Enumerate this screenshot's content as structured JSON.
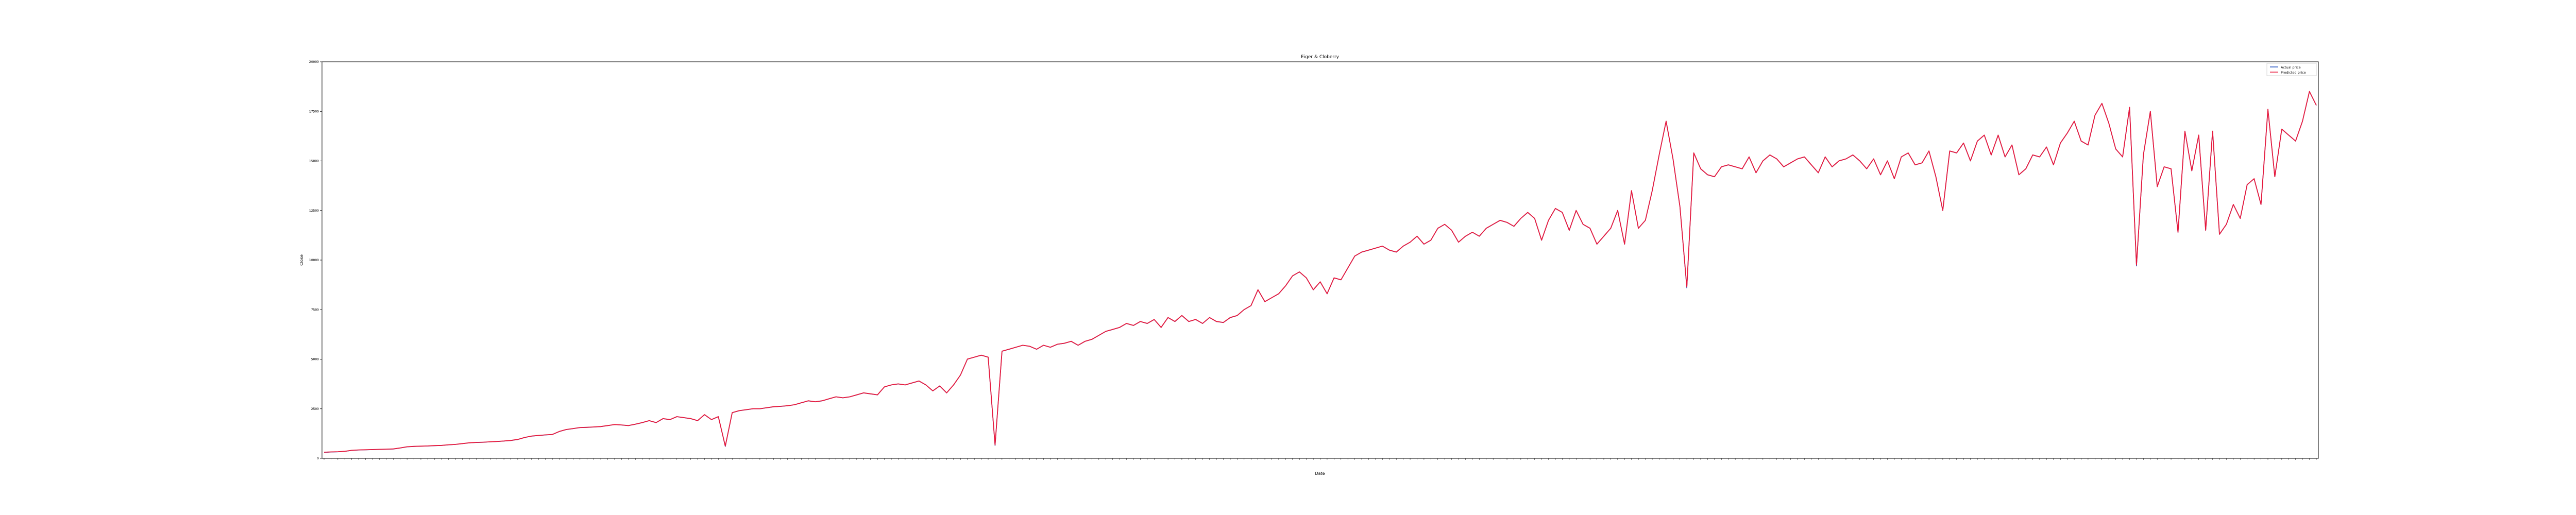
{
  "chart_data": {
    "type": "line",
    "title": "Eiger & Cloberry",
    "xlabel": "Date",
    "ylabel": "Close",
    "ylim": [
      0,
      20000
    ],
    "yticks": [
      0,
      2500,
      5000,
      7500,
      10000,
      12500,
      15000,
      17500,
      20000
    ],
    "ytick_labels": [
      "0",
      "2500",
      "5000",
      "7500",
      "10000",
      "12500",
      "15000",
      "17500",
      "20000"
    ],
    "grid": false,
    "legend_position": "top-right",
    "colors": {
      "series_0": "#1f4fbf",
      "series_1": "#e8193c"
    },
    "series": [
      {
        "name": "Actual price",
        "values": [
          300,
          320,
          330,
          350,
          400,
          420,
          430,
          440,
          450,
          460,
          470,
          520,
          580,
          600,
          610,
          620,
          640,
          650,
          680,
          700,
          740,
          780,
          800,
          810,
          830,
          850,
          870,
          900,
          950,
          1050,
          1120,
          1150,
          1180,
          1200,
          1350,
          1450,
          1500,
          1550,
          1560,
          1580,
          1600,
          1650,
          1700,
          1680,
          1650,
          1720,
          1800,
          1900,
          1800,
          2000,
          1950,
          2100,
          2050,
          2000,
          1900,
          2200,
          1950,
          2100,
          600,
          2300,
          2400,
          2450,
          2500,
          2500,
          2550,
          2600,
          2620,
          2650,
          2700,
          2800,
          2900,
          2850,
          2900,
          3000,
          3100,
          3050,
          3100,
          3200,
          3300,
          3250,
          3200,
          3600,
          3700,
          3750,
          3700,
          3800,
          3900,
          3700,
          3400,
          3650,
          3300,
          3700,
          4200,
          5000,
          5100,
          5200,
          5100,
          650,
          5400,
          5500,
          5600,
          5700,
          5650,
          5500,
          5700,
          5600,
          5750,
          5800,
          5900,
          5700,
          5900,
          6000,
          6200,
          6400,
          6500,
          6600,
          6800,
          6700,
          6900,
          6800,
          7000,
          6600,
          7100,
          6900,
          7200,
          6900,
          7000,
          6800,
          7100,
          6900,
          6850,
          7100,
          7200,
          7500,
          7700,
          8500,
          7900,
          8100,
          8300,
          8700,
          9200,
          9400,
          9100,
          8500,
          8900,
          8300,
          9100,
          9000,
          9600,
          10200,
          10400,
          10500,
          10600,
          10700,
          10500,
          10400,
          10700,
          10900,
          11200,
          10800,
          11000,
          11600,
          11800,
          11500,
          10900,
          11200,
          11400,
          11200,
          11600,
          11800,
          12000,
          11900,
          11700,
          12100,
          12400,
          12100,
          11000,
          12000,
          12600,
          12400,
          11500,
          12500,
          11800,
          11600,
          10800,
          11200,
          11600,
          12500,
          10800,
          13500,
          11600,
          12000,
          13500,
          15300,
          17000,
          15100,
          12700,
          8600,
          15400,
          14600,
          14300,
          14200,
          14700,
          14800,
          14700,
          14600,
          15200,
          14400,
          15000,
          15300,
          15100,
          14700,
          14900,
          15100,
          15200,
          14800,
          14400,
          15200,
          14700,
          15000,
          15100,
          15300,
          15000,
          14600,
          15100,
          14300,
          15000,
          14100,
          15200,
          15400,
          14800,
          14900,
          15500,
          14200,
          12500,
          15500,
          15400,
          15900,
          15000,
          16000,
          16300,
          15300,
          16300,
          15200,
          15800,
          14300,
          14600,
          15300,
          15200,
          15700,
          14800,
          15900,
          16400,
          17000,
          16000,
          15800,
          17300,
          17900,
          16900,
          15600,
          15200,
          17700,
          9700,
          15300,
          17500,
          13700,
          14700,
          14600,
          11400,
          16500,
          14500,
          16300,
          11500,
          16500,
          11300,
          11800,
          12800,
          12100,
          13800,
          14100,
          12800,
          17600,
          14200,
          16600,
          16300,
          16000,
          17000,
          18500,
          17800
        ]
      },
      {
        "name": "Predicted price",
        "values": [
          310,
          325,
          335,
          355,
          405,
          425,
          435,
          445,
          455,
          465,
          475,
          525,
          585,
          605,
          615,
          625,
          645,
          655,
          685,
          705,
          745,
          785,
          805,
          815,
          835,
          855,
          875,
          905,
          955,
          1055,
          1125,
          1155,
          1185,
          1205,
          1355,
          1455,
          1505,
          1555,
          1565,
          1585,
          1605,
          1655,
          1705,
          1685,
          1655,
          1725,
          1805,
          1905,
          1805,
          2005,
          1955,
          2105,
          2055,
          2005,
          1905,
          2205,
          1955,
          2105,
          620,
          2305,
          2405,
          2455,
          2505,
          2505,
          2555,
          2605,
          2625,
          2655,
          2705,
          2805,
          2905,
          2855,
          2905,
          3005,
          3105,
          3055,
          3105,
          3205,
          3305,
          3255,
          3205,
          3605,
          3705,
          3755,
          3705,
          3805,
          3905,
          3705,
          3405,
          3655,
          3305,
          3705,
          4205,
          5005,
          5105,
          5205,
          5105,
          680,
          5405,
          5505,
          5605,
          5705,
          5655,
          5505,
          5705,
          5605,
          5755,
          5805,
          5905,
          5705,
          5905,
          6005,
          6205,
          6405,
          6505,
          6605,
          6805,
          6705,
          6905,
          6805,
          7005,
          6605,
          7105,
          6905,
          7205,
          6905,
          7005,
          6805,
          7105,
          6905,
          6855,
          7105,
          7205,
          7505,
          7705,
          8505,
          7905,
          8105,
          8305,
          8705,
          9205,
          9405,
          9105,
          8505,
          8905,
          8305,
          9105,
          9005,
          9605,
          10205,
          10405,
          10505,
          10605,
          10705,
          10505,
          10405,
          10705,
          10905,
          11205,
          10805,
          11005,
          11605,
          11805,
          11505,
          10905,
          11205,
          11405,
          11205,
          11605,
          11805,
          12005,
          11905,
          11705,
          12105,
          12405,
          12105,
          11005,
          12005,
          12605,
          12405,
          11505,
          12505,
          11805,
          11605,
          10805,
          11205,
          11605,
          12505,
          10805,
          13505,
          11605,
          12005,
          13505,
          15305,
          17005,
          15105,
          12705,
          8650,
          15405,
          14605,
          14305,
          14205,
          14705,
          14805,
          14705,
          14605,
          15205,
          14405,
          15005,
          15305,
          15105,
          14705,
          14905,
          15105,
          15205,
          14805,
          14405,
          15205,
          14705,
          15005,
          15105,
          15305,
          15005,
          14605,
          15105,
          14305,
          15005,
          14105,
          15205,
          15405,
          14805,
          14905,
          15505,
          14205,
          12505,
          15505,
          15405,
          15905,
          15005,
          16005,
          16305,
          15305,
          16305,
          15205,
          15805,
          14305,
          14605,
          15305,
          15205,
          15705,
          14805,
          15905,
          16405,
          17005,
          16005,
          15805,
          17305,
          17905,
          16905,
          15605,
          15205,
          17705,
          9750,
          15305,
          17505,
          13705,
          14705,
          14605,
          11405,
          16505,
          14505,
          16305,
          11505,
          16505,
          11305,
          11805,
          12805,
          12105,
          13805,
          14105,
          12805,
          17605,
          14205,
          16605,
          16305,
          16005,
          17005,
          18505,
          17805
        ]
      }
    ]
  }
}
